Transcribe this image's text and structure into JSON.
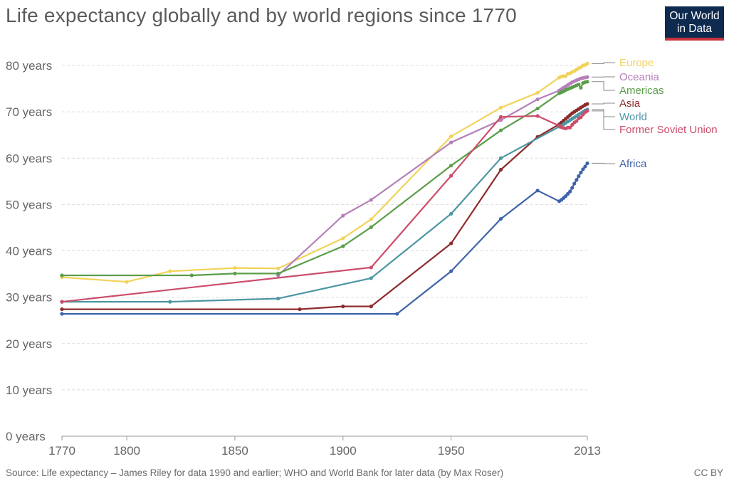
{
  "header": {
    "title": "Life expectancy globally and by world regions since 1770",
    "logo_line1": "Our World",
    "logo_line2": "in Data"
  },
  "footer": {
    "source": "Source: Life expectancy – James Riley for data 1990 and earlier; WHO and World Bank for later data (by Max Roser)",
    "license": "CC BY"
  },
  "chart_data": {
    "type": "line",
    "title": "Life expectancy globally and by world regions since 1770",
    "xlabel": "",
    "ylabel": "",
    "xlim": [
      1770,
      2013
    ],
    "ylim": [
      0,
      80
    ],
    "y_ticks": [
      0,
      10,
      20,
      30,
      40,
      50,
      60,
      70,
      80
    ],
    "y_tick_labels": [
      "0 years",
      "10 years",
      "20 years",
      "30 years",
      "40 years",
      "50 years",
      "60 years",
      "70 years",
      "80 years"
    ],
    "x_tick_labels": [
      {
        "value": 1770,
        "label": "1770"
      },
      {
        "value": 1800,
        "label": "1800"
      },
      {
        "value": 1850,
        "label": "1850"
      },
      {
        "value": 1900,
        "label": "1900"
      },
      {
        "value": 1950,
        "label": "1950"
      },
      {
        "value": 2013,
        "label": "2013"
      }
    ],
    "grid": true,
    "legend_placement": "right",
    "series": [
      {
        "name": "Europe",
        "color": "#f2d35a",
        "points": [
          [
            1770,
            34.3
          ],
          [
            1800,
            33.3
          ],
          [
            1820,
            35.6
          ],
          [
            1850,
            36.3
          ],
          [
            1870,
            36.2
          ],
          [
            1900,
            42.7
          ],
          [
            1913,
            46.8
          ],
          [
            1950,
            64.7
          ],
          [
            1973,
            70.9
          ],
          [
            1990,
            74.1
          ],
          [
            2000,
            77.4
          ],
          [
            2001,
            77.6
          ],
          [
            2002,
            77.7
          ],
          [
            2003,
            77.7
          ],
          [
            2004,
            78.2
          ],
          [
            2005,
            78.3
          ],
          [
            2006,
            78.6
          ],
          [
            2007,
            78.8
          ],
          [
            2008,
            79.1
          ],
          [
            2009,
            79.4
          ],
          [
            2010,
            79.6
          ],
          [
            2011,
            80.0
          ],
          [
            2012,
            80.1
          ],
          [
            2013,
            80.4
          ]
        ]
      },
      {
        "name": "Oceania",
        "color": "#b57fb9",
        "points": [
          [
            1870,
            34.7
          ],
          [
            1900,
            47.6
          ],
          [
            1913,
            51.0
          ],
          [
            1950,
            63.4
          ],
          [
            1973,
            68.2
          ],
          [
            1990,
            72.7
          ],
          [
            2000,
            74.6
          ],
          [
            2001,
            74.9
          ],
          [
            2002,
            75.2
          ],
          [
            2003,
            75.5
          ],
          [
            2004,
            75.8
          ],
          [
            2005,
            76.1
          ],
          [
            2006,
            76.4
          ],
          [
            2007,
            76.6
          ],
          [
            2008,
            76.8
          ],
          [
            2009,
            77.0
          ],
          [
            2010,
            77.2
          ],
          [
            2011,
            77.3
          ],
          [
            2012,
            77.4
          ],
          [
            2013,
            77.5
          ]
        ]
      },
      {
        "name": "Americas",
        "color": "#5b9d4a",
        "points": [
          [
            1770,
            34.7
          ],
          [
            1830,
            34.7
          ],
          [
            1850,
            35.1
          ],
          [
            1870,
            35.1
          ],
          [
            1900,
            41.0
          ],
          [
            1913,
            45.1
          ],
          [
            1950,
            58.4
          ],
          [
            1973,
            66.0
          ],
          [
            1990,
            70.7
          ],
          [
            2000,
            74.0
          ],
          [
            2001,
            74.2
          ],
          [
            2002,
            74.4
          ],
          [
            2003,
            74.7
          ],
          [
            2004,
            74.9
          ],
          [
            2005,
            75.1
          ],
          [
            2006,
            75.3
          ],
          [
            2007,
            75.5
          ],
          [
            2008,
            75.7
          ],
          [
            2009,
            75.9
          ],
          [
            2010,
            75.2
          ],
          [
            2011,
            76.2
          ],
          [
            2012,
            76.4
          ],
          [
            2013,
            76.5
          ]
        ]
      },
      {
        "name": "Asia",
        "color": "#8e2b2b",
        "points": [
          [
            1770,
            27.4
          ],
          [
            1880,
            27.4
          ],
          [
            1900,
            28.0
          ],
          [
            1913,
            28.0
          ],
          [
            1950,
            41.6
          ],
          [
            1973,
            57.5
          ],
          [
            1990,
            64.6
          ],
          [
            2000,
            67.3
          ],
          [
            2001,
            67.7
          ],
          [
            2002,
            68.1
          ],
          [
            2003,
            68.5
          ],
          [
            2004,
            68.9
          ],
          [
            2005,
            69.3
          ],
          [
            2006,
            69.7
          ],
          [
            2007,
            70.0
          ],
          [
            2008,
            70.3
          ],
          [
            2009,
            70.6
          ],
          [
            2010,
            70.9
          ],
          [
            2011,
            71.2
          ],
          [
            2012,
            71.5
          ],
          [
            2013,
            71.7
          ]
        ]
      },
      {
        "name": "World",
        "color": "#4c97a3",
        "points": [
          [
            1770,
            29.0
          ],
          [
            1820,
            29.0
          ],
          [
            1870,
            29.7
          ],
          [
            1913,
            34.1
          ],
          [
            1950,
            48.0
          ],
          [
            1973,
            60.0
          ],
          [
            2000,
            66.8
          ],
          [
            2001,
            67.0
          ],
          [
            2002,
            67.3
          ],
          [
            2003,
            67.6
          ],
          [
            2004,
            67.9
          ],
          [
            2005,
            68.2
          ],
          [
            2006,
            68.5
          ],
          [
            2007,
            68.8
          ],
          [
            2008,
            69.1
          ],
          [
            2009,
            69.4
          ],
          [
            2010,
            69.7
          ],
          [
            2011,
            70.0
          ],
          [
            2012,
            70.3
          ],
          [
            2013,
            70.5
          ]
        ]
      },
      {
        "name": "Former Soviet Union",
        "color": "#cc4d6a",
        "points": [
          [
            1770,
            29.0
          ],
          [
            1913,
            36.4
          ],
          [
            1950,
            56.2
          ],
          [
            1973,
            68.9
          ],
          [
            1990,
            69.1
          ],
          [
            2000,
            67.0
          ],
          [
            2001,
            66.7
          ],
          [
            2002,
            66.5
          ],
          [
            2003,
            66.4
          ],
          [
            2004,
            66.6
          ],
          [
            2005,
            66.6
          ],
          [
            2006,
            67.2
          ],
          [
            2007,
            67.7
          ],
          [
            2008,
            68.0
          ],
          [
            2009,
            68.6
          ],
          [
            2010,
            68.8
          ],
          [
            2011,
            69.4
          ],
          [
            2012,
            69.9
          ],
          [
            2013,
            70.2
          ]
        ]
      },
      {
        "name": "Africa",
        "color": "#3f63a8",
        "points": [
          [
            1770,
            26.4
          ],
          [
            1925,
            26.4
          ],
          [
            1950,
            35.6
          ],
          [
            1973,
            46.9
          ],
          [
            1990,
            53.0
          ],
          [
            2000,
            50.7
          ],
          [
            2001,
            51.0
          ],
          [
            2002,
            51.4
          ],
          [
            2003,
            51.8
          ],
          [
            2004,
            52.3
          ],
          [
            2005,
            52.8
          ],
          [
            2006,
            53.6
          ],
          [
            2007,
            54.5
          ],
          [
            2008,
            55.3
          ],
          [
            2009,
            56.1
          ],
          [
            2010,
            56.9
          ],
          [
            2011,
            57.6
          ],
          [
            2012,
            58.2
          ],
          [
            2013,
            58.9
          ]
        ]
      }
    ]
  }
}
